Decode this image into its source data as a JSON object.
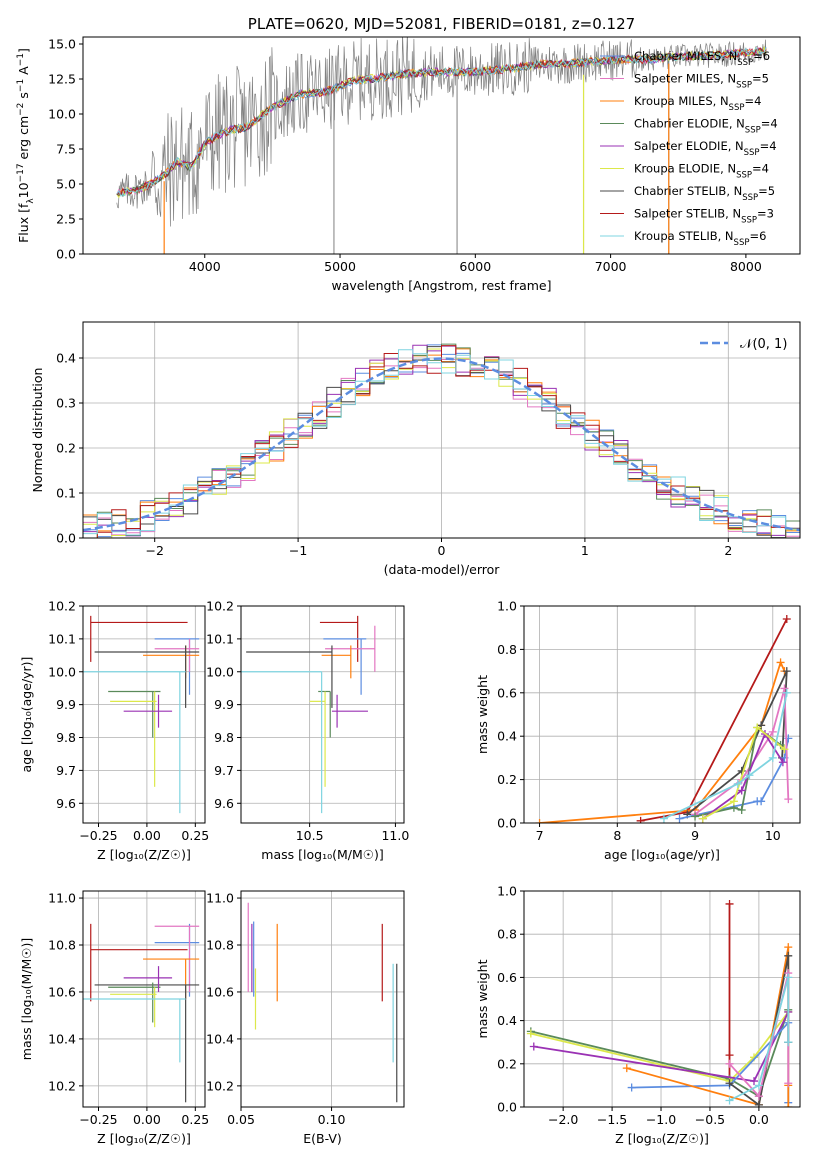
{
  "colors": {
    "miles_chabrier": "#5c8de0",
    "miles_salpeter": "#e377c2",
    "miles_kroupa": "#ff7f0e",
    "elodie_chabrier": "#5a8a5a",
    "elodie_salpeter": "#9a32b4",
    "elodie_kroupa": "#dce84a",
    "stelib_chabrier": "#4a4a4a",
    "stelib_salpeter": "#b51a1a",
    "stelib_kroupa": "#7fd4e0",
    "data": "#808080",
    "normal": "#5c8de0"
  },
  "chart_data": [
    {
      "type": "line",
      "title": "PLATE=0620, MJD=52081, FIBERID=0181, z=0.127",
      "xlabel": "wavelength [Angstrom, rest frame]",
      "ylabel_parts": [
        "Flux [f",
        "λ",
        "10",
        "−17",
        " erg cm",
        "−2",
        " s",
        "−1",
        " A",
        "−1",
        "]"
      ],
      "xlim": [
        3100,
        8400
      ],
      "ylim": [
        0,
        15.5
      ],
      "xticks": [
        4000,
        5000,
        6000,
        7000,
        8000
      ],
      "yticks": [
        0.0,
        2.5,
        5.0,
        7.5,
        10.0,
        12.5,
        15.0
      ],
      "ytick_labels": [
        "0.0",
        "2.5",
        "5.0",
        "7.5",
        "10.0",
        "12.5",
        "15.0"
      ],
      "legend": "right",
      "legend_entries": [
        {
          "label": "Chabrier MILES, N",
          "sub": "SSP",
          "tail": "=6",
          "color_key": "miles_chabrier"
        },
        {
          "label": "Salpeter MILES, N",
          "sub": "SSP",
          "tail": "=5",
          "color_key": "miles_salpeter"
        },
        {
          "label": "Kroupa MILES, N",
          "sub": "SSP",
          "tail": "=4",
          "color_key": "miles_kroupa"
        },
        {
          "label": "Chabrier ELODIE, N",
          "sub": "SSP",
          "tail": "=4",
          "color_key": "elodie_chabrier"
        },
        {
          "label": "Salpeter ELODIE, N",
          "sub": "SSP",
          "tail": "=4",
          "color_key": "elodie_salpeter"
        },
        {
          "label": "Kroupa ELODIE, N",
          "sub": "SSP",
          "tail": "=4",
          "color_key": "elodie_kroupa"
        },
        {
          "label": "Chabrier STELIB, N",
          "sub": "SSP",
          "tail": "=5",
          "color_key": "stelib_chabrier"
        },
        {
          "label": "Salpeter STELIB, N",
          "sub": "SSP",
          "tail": "=3",
          "color_key": "stelib_salpeter"
        },
        {
          "label": "Kroupa STELIB, N",
          "sub": "SSP",
          "tail": "=6",
          "color_key": "stelib_kroupa"
        }
      ],
      "continuum": [
        [
          3350,
          4.3
        ],
        [
          3500,
          4.6
        ],
        [
          3600,
          5.0
        ],
        [
          3700,
          5.6
        ],
        [
          3800,
          6.6
        ],
        [
          3900,
          6.2
        ],
        [
          4000,
          7.9
        ],
        [
          4100,
          8.5
        ],
        [
          4200,
          8.9
        ],
        [
          4300,
          9.0
        ],
        [
          4500,
          10.5
        ],
        [
          4700,
          11.4
        ],
        [
          4900,
          11.6
        ],
        [
          5100,
          12.4
        ],
        [
          5300,
          12.6
        ],
        [
          5500,
          12.9
        ],
        [
          5700,
          13.0
        ],
        [
          5900,
          13.0
        ],
        [
          6100,
          13.1
        ],
        [
          6300,
          13.3
        ],
        [
          6500,
          13.6
        ],
        [
          6700,
          13.6
        ],
        [
          6900,
          13.8
        ],
        [
          7100,
          13.9
        ],
        [
          7300,
          13.9
        ],
        [
          7500,
          14.1
        ],
        [
          7800,
          14.2
        ],
        [
          8000,
          14.4
        ],
        [
          8150,
          14.5
        ]
      ]
    },
    {
      "type": "histogram",
      "xlabel": "(data-model)/error",
      "ylabel": "Normed distribution",
      "xlim": [
        -2.5,
        2.5
      ],
      "ylim": [
        0,
        0.48
      ],
      "xticks": [
        -2,
        -1,
        0,
        1,
        2
      ],
      "xtick_labels": [
        "−2",
        "−1",
        "0",
        "1",
        "2"
      ],
      "yticks": [
        0.0,
        0.1,
        0.2,
        0.3,
        0.4
      ],
      "ytick_labels": [
        "0.0",
        "0.1",
        "0.2",
        "0.3",
        "0.4"
      ],
      "legend": "top-right",
      "legend_label": "𝒩(0, 1)",
      "bin_width": 0.1,
      "bin_start": -2.5
    },
    {
      "type": "scatter",
      "xlabel": "Z [log₁₀(Z/Z☉)]",
      "ylabel": "age  [log₁₀(age/yr)]",
      "xlim": [
        -0.33,
        0.3
      ],
      "ylim": [
        9.54,
        10.2
      ],
      "xticks": [
        -0.25,
        0.0,
        0.25
      ],
      "xtick_labels": [
        "−0.25",
        "0.00",
        "0.25"
      ],
      "yticks": [
        9.6,
        9.7,
        9.8,
        9.9,
        10.0,
        10.1,
        10.2
      ],
      "ytick_labels": [
        "9.6",
        "9.7",
        "9.8",
        "9.9",
        "10.0",
        "10.1",
        "10.2"
      ],
      "errorbars": [
        {
          "c": "stelib_salpeter",
          "x": -0.29,
          "xlo": -0.29,
          "xhi": 0.21,
          "y": 10.15,
          "ylo": 10.03,
          "yhi": 10.17
        },
        {
          "c": "miles_chabrier",
          "x": 0.22,
          "xlo": 0.04,
          "xhi": 0.27,
          "y": 10.1,
          "ylo": 9.93,
          "yhi": 10.1
        },
        {
          "c": "miles_salpeter",
          "x": 0.22,
          "xlo": 0.04,
          "xhi": 0.27,
          "y": 10.07,
          "ylo": 10.0,
          "yhi": 10.1
        },
        {
          "c": "miles_kroupa",
          "x": 0.2,
          "xlo": -0.02,
          "xhi": 0.27,
          "y": 10.05,
          "ylo": 9.98,
          "yhi": 10.08
        },
        {
          "c": "stelib_chabrier",
          "x": 0.2,
          "xlo": -0.27,
          "xhi": 0.27,
          "y": 10.06,
          "ylo": 9.89,
          "yhi": 10.08
        },
        {
          "c": "elodie_chabrier",
          "x": 0.03,
          "xlo": -0.2,
          "xhi": 0.07,
          "y": 9.94,
          "ylo": 9.8,
          "yhi": 9.94
        },
        {
          "c": "elodie_kroupa",
          "x": 0.04,
          "xlo": -0.19,
          "xhi": 0.05,
          "y": 9.91,
          "ylo": 9.65,
          "yhi": 9.94
        },
        {
          "c": "elodie_salpeter",
          "x": 0.06,
          "xlo": -0.12,
          "xhi": 0.13,
          "y": 9.88,
          "ylo": 9.83,
          "yhi": 9.93
        },
        {
          "c": "stelib_kroupa",
          "x": 0.17,
          "xlo": -0.33,
          "xhi": 0.2,
          "y": 10.0,
          "ylo": 9.57,
          "yhi": 10.0
        }
      ]
    },
    {
      "type": "scatter",
      "xlabel": "mass [log₁₀(M/M☉)]",
      "xlim": [
        10.1,
        11.05
      ],
      "ylim": [
        9.54,
        10.2
      ],
      "xticks": [
        10.5,
        11.0
      ],
      "xtick_labels": [
        "10.5",
        "11.0"
      ],
      "yticks": [
        9.6,
        9.7,
        9.8,
        9.9,
        10.0,
        10.1,
        10.2
      ],
      "ytick_labels": [
        "9.6",
        "9.7",
        "9.8",
        "9.9",
        "10.0",
        "10.1",
        "10.2"
      ],
      "errorbars": [
        {
          "c": "stelib_salpeter",
          "x": 10.78,
          "xlo": 10.56,
          "xhi": 10.78,
          "y": 10.15,
          "ylo": 10.03,
          "yhi": 10.17
        },
        {
          "c": "miles_chabrier",
          "x": 10.8,
          "xlo": 10.58,
          "xhi": 10.83,
          "y": 10.1,
          "ylo": 9.93,
          "yhi": 10.1
        },
        {
          "c": "miles_salpeter",
          "x": 10.88,
          "xlo": 10.59,
          "xhi": 10.88,
          "y": 10.07,
          "ylo": 10.0,
          "yhi": 10.14
        },
        {
          "c": "miles_kroupa",
          "x": 10.74,
          "xlo": 10.57,
          "xhi": 10.74,
          "y": 10.05,
          "ylo": 9.98,
          "yhi": 10.08
        },
        {
          "c": "stelib_chabrier",
          "x": 10.63,
          "xlo": 10.13,
          "xhi": 10.63,
          "y": 10.06,
          "ylo": 9.89,
          "yhi": 10.08
        },
        {
          "c": "elodie_chabrier",
          "x": 10.62,
          "xlo": 10.55,
          "xhi": 10.62,
          "y": 9.94,
          "ylo": 9.8,
          "yhi": 9.94
        },
        {
          "c": "elodie_kroupa",
          "x": 10.59,
          "xlo": 10.5,
          "xhi": 10.59,
          "y": 9.91,
          "ylo": 9.65,
          "yhi": 9.94
        },
        {
          "c": "elodie_salpeter",
          "x": 10.66,
          "xlo": 10.63,
          "xhi": 10.84,
          "y": 9.88,
          "ylo": 9.83,
          "yhi": 9.93
        },
        {
          "c": "stelib_kroupa",
          "x": 10.57,
          "xlo": 10.1,
          "xhi": 10.57,
          "y": 10.0,
          "ylo": 9.57,
          "yhi": 10.0
        }
      ]
    },
    {
      "type": "line",
      "xlabel": "age  [log₁₀(age/yr)]",
      "ylabel": "mass weight",
      "xlim": [
        6.8,
        10.35
      ],
      "ylim": [
        0,
        1.0
      ],
      "xticks": [
        7,
        8,
        9,
        10
      ],
      "xtick_labels": [
        "7",
        "8",
        "9",
        "10"
      ],
      "yticks": [
        0.0,
        0.2,
        0.4,
        0.6,
        0.8,
        1.0
      ],
      "ytick_labels": [
        "0.0",
        "0.2",
        "0.4",
        "0.6",
        "0.8",
        "1.0"
      ],
      "series": [
        {
          "c": "stelib_salpeter",
          "x": [
            8.3,
            8.9,
            10.18
          ],
          "y": [
            0.01,
            0.05,
            0.94
          ]
        },
        {
          "c": "miles_kroupa",
          "x": [
            7.0,
            9.0,
            9.85,
            10.1,
            10.15
          ],
          "y": [
            0.0,
            0.06,
            0.45,
            0.74,
            0.7
          ]
        },
        {
          "c": "stelib_chabrier",
          "x": [
            8.9,
            9.6,
            9.85,
            10.18,
            10.12
          ],
          "y": [
            0.04,
            0.24,
            0.45,
            0.7,
            0.3
          ]
        },
        {
          "c": "miles_chabrier",
          "x": [
            8.8,
            9.8,
            9.85,
            10.15,
            10.2
          ],
          "y": [
            0.02,
            0.1,
            0.1,
            0.3,
            0.39
          ]
        },
        {
          "c": "miles_salpeter",
          "x": [
            9.0,
            9.6,
            10.0,
            10.15,
            10.2
          ],
          "y": [
            0.04,
            0.2,
            0.42,
            0.62,
            0.11
          ]
        },
        {
          "c": "elodie_chabrier",
          "x": [
            9.0,
            9.5,
            9.6,
            9.8,
            10.1
          ],
          "y": [
            0.03,
            0.07,
            0.06,
            0.44,
            0.36
          ]
        },
        {
          "c": "elodie_salpeter",
          "x": [
            9.1,
            9.6,
            9.9,
            10.13
          ],
          "y": [
            0.02,
            0.15,
            0.41,
            0.28
          ]
        },
        {
          "c": "elodie_kroupa",
          "x": [
            9.1,
            9.5,
            9.8,
            10.15
          ],
          "y": [
            0.02,
            0.1,
            0.44,
            0.34
          ]
        },
        {
          "c": "stelib_kroupa",
          "x": [
            8.6,
            9.55,
            9.7,
            10.0,
            10.18
          ],
          "y": [
            0.02,
            0.18,
            0.22,
            0.3,
            0.6
          ]
        }
      ]
    },
    {
      "type": "scatter",
      "xlabel": "Z [log₁₀(Z/Z☉)]",
      "ylabel": "mass [log₁₀(M/M☉)]",
      "xlim": [
        -0.33,
        0.3
      ],
      "ylim": [
        10.11,
        11.03
      ],
      "xticks": [
        -0.25,
        0.0,
        0.25
      ],
      "xtick_labels": [
        "−0.25",
        "0.00",
        "0.25"
      ],
      "yticks": [
        10.2,
        10.4,
        10.6,
        10.8,
        11.0
      ],
      "ytick_labels": [
        "10.2",
        "10.4",
        "10.6",
        "10.8",
        "11.0"
      ],
      "errorbars": [
        {
          "c": "stelib_salpeter",
          "x": -0.29,
          "xlo": -0.29,
          "xhi": 0.21,
          "y": 10.78,
          "ylo": 10.56,
          "yhi": 10.89
        },
        {
          "c": "miles_chabrier",
          "x": 0.22,
          "xlo": 0.04,
          "xhi": 0.27,
          "y": 10.81,
          "ylo": 10.58,
          "yhi": 10.89
        },
        {
          "c": "miles_salpeter",
          "x": 0.22,
          "xlo": 0.04,
          "xhi": 0.27,
          "y": 10.88,
          "ylo": 10.6,
          "yhi": 10.88
        },
        {
          "c": "miles_kroupa",
          "x": 0.2,
          "xlo": -0.02,
          "xhi": 0.27,
          "y": 10.74,
          "ylo": 10.57,
          "yhi": 10.74
        },
        {
          "c": "stelib_chabrier",
          "x": 0.2,
          "xlo": -0.27,
          "xhi": 0.27,
          "y": 10.63,
          "ylo": 10.13,
          "yhi": 10.63
        },
        {
          "c": "elodie_chabrier",
          "x": 0.03,
          "xlo": -0.2,
          "xhi": 0.07,
          "y": 10.62,
          "ylo": 10.47,
          "yhi": 10.64
        },
        {
          "c": "elodie_kroupa",
          "x": 0.04,
          "xlo": -0.19,
          "xhi": 0.05,
          "y": 10.59,
          "ylo": 10.45,
          "yhi": 10.62
        },
        {
          "c": "elodie_salpeter",
          "x": 0.06,
          "xlo": -0.12,
          "xhi": 0.13,
          "y": 10.66,
          "ylo": 10.6,
          "yhi": 10.71
        },
        {
          "c": "stelib_kroupa",
          "x": 0.17,
          "xlo": -0.33,
          "xhi": 0.2,
          "y": 10.57,
          "ylo": 10.3,
          "yhi": 10.57
        }
      ]
    },
    {
      "type": "scatter",
      "xlabel": "E(B-V)",
      "xlim": [
        0.05,
        0.14
      ],
      "ylim": [
        10.11,
        11.03
      ],
      "xticks": [
        0.05,
        0.1
      ],
      "xtick_labels": [
        "0.05",
        "0.10"
      ],
      "yticks": [
        10.2,
        10.4,
        10.6,
        10.8,
        11.0
      ],
      "ytick_labels": [
        "10.2",
        "10.4",
        "10.6",
        "10.8",
        "11.0"
      ],
      "errorbars": [
        {
          "c": "miles_salpeter",
          "x": 0.054,
          "ylo": 10.6,
          "yhi": 10.98
        },
        {
          "c": "elodie_salpeter",
          "x": 0.056,
          "ylo": 10.6,
          "yhi": 10.89
        },
        {
          "c": "miles_chabrier",
          "x": 0.057,
          "ylo": 10.58,
          "yhi": 10.9
        },
        {
          "c": "elodie_kroupa",
          "x": 0.058,
          "ylo": 10.44,
          "yhi": 10.7
        },
        {
          "c": "miles_kroupa",
          "x": 0.07,
          "ylo": 10.56,
          "yhi": 10.89
        },
        {
          "c": "stelib_salpeter",
          "x": 0.128,
          "ylo": 10.56,
          "yhi": 10.89
        },
        {
          "c": "stelib_kroupa",
          "x": 0.134,
          "ylo": 10.3,
          "yhi": 10.72
        },
        {
          "c": "stelib_chabrier",
          "x": 0.136,
          "ylo": 10.13,
          "yhi": 10.72
        }
      ]
    },
    {
      "type": "line",
      "xlabel": "Z [log₁₀(Z/Z☉)]",
      "ylabel": "mass weight",
      "xlim": [
        -2.4,
        0.42
      ],
      "ylim": [
        0,
        1.0
      ],
      "xticks": [
        -2.0,
        -1.5,
        -1.0,
        -0.5,
        0.0
      ],
      "xtick_labels": [
        "−2.0",
        "−1.5",
        "−1.0",
        "−0.5",
        "0.0"
      ],
      "yticks": [
        0.0,
        0.2,
        0.4,
        0.6,
        0.8,
        1.0
      ],
      "ytick_labels": [
        "0.0",
        "0.2",
        "0.4",
        "0.6",
        "0.8",
        "1.0"
      ],
      "series": [
        {
          "c": "stelib_salpeter",
          "x": [
            -0.3,
            -0.3,
            -0.3
          ],
          "y": [
            0.94,
            0.24,
            0.13
          ]
        },
        {
          "c": "elodie_chabrier",
          "x": [
            -2.33,
            -0.3,
            0.0,
            0.3
          ],
          "y": [
            0.35,
            0.13,
            0.05,
            0.45
          ]
        },
        {
          "c": "elodie_kroupa",
          "x": [
            -2.33,
            -0.3,
            -0.05,
            0.3
          ],
          "y": [
            0.34,
            0.12,
            0.23,
            0.44
          ]
        },
        {
          "c": "elodie_salpeter",
          "x": [
            -2.3,
            -0.05,
            0.3
          ],
          "y": [
            0.28,
            0.12,
            0.44
          ]
        },
        {
          "c": "miles_chabrier",
          "x": [
            -1.3,
            -0.3,
            0.3,
            0.3
          ],
          "y": [
            0.09,
            0.1,
            0.39,
            0.02
          ]
        },
        {
          "c": "miles_kroupa",
          "x": [
            -1.35,
            0.0,
            0.3,
            0.3,
            0.3
          ],
          "y": [
            0.18,
            0.01,
            0.74,
            0.1,
            0.0
          ]
        },
        {
          "c": "stelib_chabrier",
          "x": [
            -0.3,
            0.0,
            0.3,
            0.3
          ],
          "y": [
            0.11,
            0.01,
            0.7,
            0.3
          ]
        },
        {
          "c": "miles_salpeter",
          "x": [
            -0.3,
            0.0,
            0.3,
            0.3
          ],
          "y": [
            0.2,
            0.05,
            0.62,
            0.11
          ]
        },
        {
          "c": "stelib_kroupa",
          "x": [
            -0.3,
            0.0,
            0.3,
            0.3
          ],
          "y": [
            0.03,
            0.1,
            0.6,
            0.3
          ]
        }
      ]
    }
  ]
}
